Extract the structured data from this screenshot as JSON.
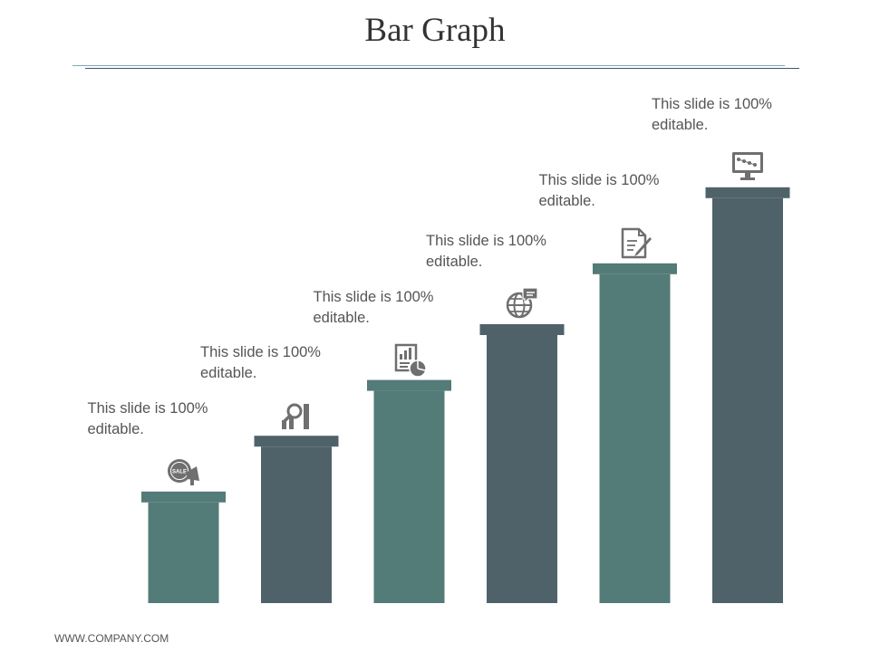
{
  "slide": {
    "title": "Bar Graph",
    "footer": "WWW.COMPANY.COM"
  },
  "colors": {
    "teal": "#537b78",
    "slate": "#4f626a",
    "icon": "#6f6f6f"
  },
  "chart_data": {
    "type": "bar",
    "title": "Bar Graph",
    "xlabel": "",
    "ylabel": "",
    "ylim": [
      0,
      100
    ],
    "grid": false,
    "values": [
      22,
      33,
      44,
      55,
      67,
      82
    ],
    "colors": [
      "#537b78",
      "#4f626a",
      "#537b78",
      "#4f626a",
      "#537b78",
      "#4f626a"
    ],
    "icons": [
      "sale-megaphone-icon",
      "magnifier-growth-chart-icon",
      "report-pie-chart-icon",
      "globe-chat-icon",
      "document-pen-icon",
      "monitor-dollar-icon"
    ],
    "annotations": [
      {
        "line1": "This slide is 100%",
        "line2": "editable."
      },
      {
        "line1": "This slide is 100%",
        "line2": "editable."
      },
      {
        "line1": "This slide is 100%",
        "line2": "editable."
      },
      {
        "line1": "This slide is 100%",
        "line2": "editable."
      },
      {
        "line1": "This slide is 100%",
        "line2": "editable."
      },
      {
        "line1": "This slide is 100%",
        "line2": "editable."
      }
    ],
    "sale_icon_text": "SALE"
  }
}
